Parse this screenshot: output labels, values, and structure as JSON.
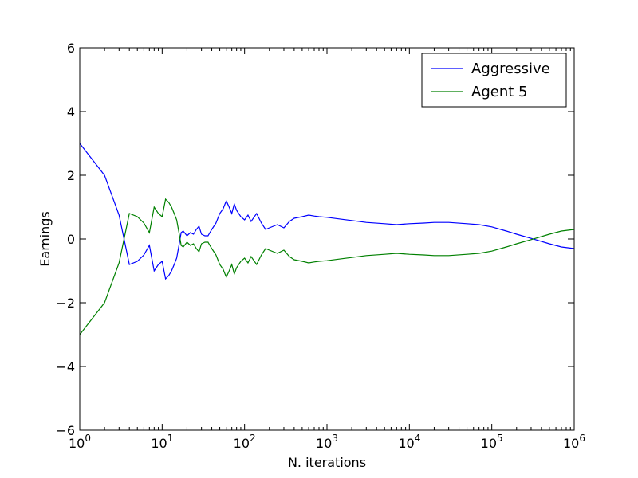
{
  "chart_data": {
    "type": "line",
    "xscale": "log",
    "xlabel": "N. iterations",
    "ylabel": "Earnings",
    "xlim": [
      1,
      1000000
    ],
    "ylim": [
      -6,
      6
    ],
    "x_ticks": [
      {
        "value": 1,
        "base": "10",
        "exp": "0"
      },
      {
        "value": 10,
        "base": "10",
        "exp": "1"
      },
      {
        "value": 100,
        "base": "10",
        "exp": "2"
      },
      {
        "value": 1000,
        "base": "10",
        "exp": "3"
      },
      {
        "value": 10000,
        "base": "10",
        "exp": "4"
      },
      {
        "value": 100000,
        "base": "10",
        "exp": "5"
      },
      {
        "value": 1000000,
        "base": "10",
        "exp": "6"
      }
    ],
    "y_ticks": [
      {
        "value": -6,
        "label": "−6"
      },
      {
        "value": -4,
        "label": "−4"
      },
      {
        "value": -2,
        "label": "−2"
      },
      {
        "value": 0,
        "label": "0"
      },
      {
        "value": 2,
        "label": "2"
      },
      {
        "value": 4,
        "label": "4"
      },
      {
        "value": 6,
        "label": "6"
      }
    ],
    "grid": false,
    "legend_position": "top-right",
    "series": [
      {
        "name": "Aggressive",
        "color": "#0000ff",
        "points": [
          [
            1,
            3.0
          ],
          [
            2,
            2.0
          ],
          [
            3,
            0.75
          ],
          [
            4,
            -0.8
          ],
          [
            5,
            -0.7
          ],
          [
            6,
            -0.5
          ],
          [
            7,
            -0.2
          ],
          [
            8,
            -1.0
          ],
          [
            9,
            -0.8
          ],
          [
            10,
            -0.7
          ],
          [
            11,
            -1.25
          ],
          [
            12,
            -1.15
          ],
          [
            13,
            -1.0
          ],
          [
            14,
            -0.8
          ],
          [
            15,
            -0.6
          ],
          [
            16,
            -0.2
          ],
          [
            17,
            0.2
          ],
          [
            18,
            0.25
          ],
          [
            20,
            0.1
          ],
          [
            22,
            0.2
          ],
          [
            24,
            0.15
          ],
          [
            26,
            0.3
          ],
          [
            28,
            0.4
          ],
          [
            30,
            0.15
          ],
          [
            33,
            0.1
          ],
          [
            36,
            0.1
          ],
          [
            40,
            0.3
          ],
          [
            45,
            0.5
          ],
          [
            50,
            0.8
          ],
          [
            55,
            0.95
          ],
          [
            60,
            1.2
          ],
          [
            65,
            1.0
          ],
          [
            70,
            0.8
          ],
          [
            75,
            1.1
          ],
          [
            80,
            0.9
          ],
          [
            90,
            0.7
          ],
          [
            100,
            0.6
          ],
          [
            110,
            0.75
          ],
          [
            120,
            0.55
          ],
          [
            140,
            0.8
          ],
          [
            160,
            0.5
          ],
          [
            180,
            0.3
          ],
          [
            200,
            0.35
          ],
          [
            250,
            0.45
          ],
          [
            300,
            0.35
          ],
          [
            350,
            0.55
          ],
          [
            400,
            0.65
          ],
          [
            500,
            0.7
          ],
          [
            600,
            0.75
          ],
          [
            700,
            0.72
          ],
          [
            800,
            0.7
          ],
          [
            1000,
            0.68
          ],
          [
            1500,
            0.62
          ],
          [
            2000,
            0.58
          ],
          [
            3000,
            0.52
          ],
          [
            5000,
            0.48
          ],
          [
            7000,
            0.45
          ],
          [
            10000,
            0.48
          ],
          [
            15000,
            0.5
          ],
          [
            20000,
            0.52
          ],
          [
            30000,
            0.52
          ],
          [
            50000,
            0.48
          ],
          [
            70000,
            0.45
          ],
          [
            100000,
            0.38
          ],
          [
            150000,
            0.25
          ],
          [
            200000,
            0.15
          ],
          [
            300000,
            0.02
          ],
          [
            500000,
            -0.15
          ],
          [
            700000,
            -0.25
          ],
          [
            1000000,
            -0.3
          ]
        ]
      },
      {
        "name": "Agent 5",
        "color": "#008000",
        "points": [
          [
            1,
            -3.0
          ],
          [
            2,
            -2.0
          ],
          [
            3,
            -0.75
          ],
          [
            4,
            0.8
          ],
          [
            5,
            0.7
          ],
          [
            6,
            0.5
          ],
          [
            7,
            0.2
          ],
          [
            8,
            1.0
          ],
          [
            9,
            0.8
          ],
          [
            10,
            0.7
          ],
          [
            11,
            1.25
          ],
          [
            12,
            1.15
          ],
          [
            13,
            1.0
          ],
          [
            14,
            0.8
          ],
          [
            15,
            0.6
          ],
          [
            16,
            0.2
          ],
          [
            17,
            -0.2
          ],
          [
            18,
            -0.25
          ],
          [
            20,
            -0.1
          ],
          [
            22,
            -0.2
          ],
          [
            24,
            -0.15
          ],
          [
            26,
            -0.3
          ],
          [
            28,
            -0.4
          ],
          [
            30,
            -0.15
          ],
          [
            33,
            -0.1
          ],
          [
            36,
            -0.1
          ],
          [
            40,
            -0.3
          ],
          [
            45,
            -0.5
          ],
          [
            50,
            -0.8
          ],
          [
            55,
            -0.95
          ],
          [
            60,
            -1.2
          ],
          [
            65,
            -1.0
          ],
          [
            70,
            -0.8
          ],
          [
            75,
            -1.1
          ],
          [
            80,
            -0.9
          ],
          [
            90,
            -0.7
          ],
          [
            100,
            -0.6
          ],
          [
            110,
            -0.75
          ],
          [
            120,
            -0.55
          ],
          [
            140,
            -0.8
          ],
          [
            160,
            -0.5
          ],
          [
            180,
            -0.3
          ],
          [
            200,
            -0.35
          ],
          [
            250,
            -0.45
          ],
          [
            300,
            -0.35
          ],
          [
            350,
            -0.55
          ],
          [
            400,
            -0.65
          ],
          [
            500,
            -0.7
          ],
          [
            600,
            -0.75
          ],
          [
            700,
            -0.72
          ],
          [
            800,
            -0.7
          ],
          [
            1000,
            -0.68
          ],
          [
            1500,
            -0.62
          ],
          [
            2000,
            -0.58
          ],
          [
            3000,
            -0.52
          ],
          [
            5000,
            -0.48
          ],
          [
            7000,
            -0.45
          ],
          [
            10000,
            -0.48
          ],
          [
            15000,
            -0.5
          ],
          [
            20000,
            -0.52
          ],
          [
            30000,
            -0.52
          ],
          [
            50000,
            -0.48
          ],
          [
            70000,
            -0.45
          ],
          [
            100000,
            -0.38
          ],
          [
            150000,
            -0.25
          ],
          [
            200000,
            -0.15
          ],
          [
            300000,
            -0.02
          ],
          [
            500000,
            0.15
          ],
          [
            700000,
            0.25
          ],
          [
            1000000,
            0.3
          ]
        ]
      }
    ]
  }
}
